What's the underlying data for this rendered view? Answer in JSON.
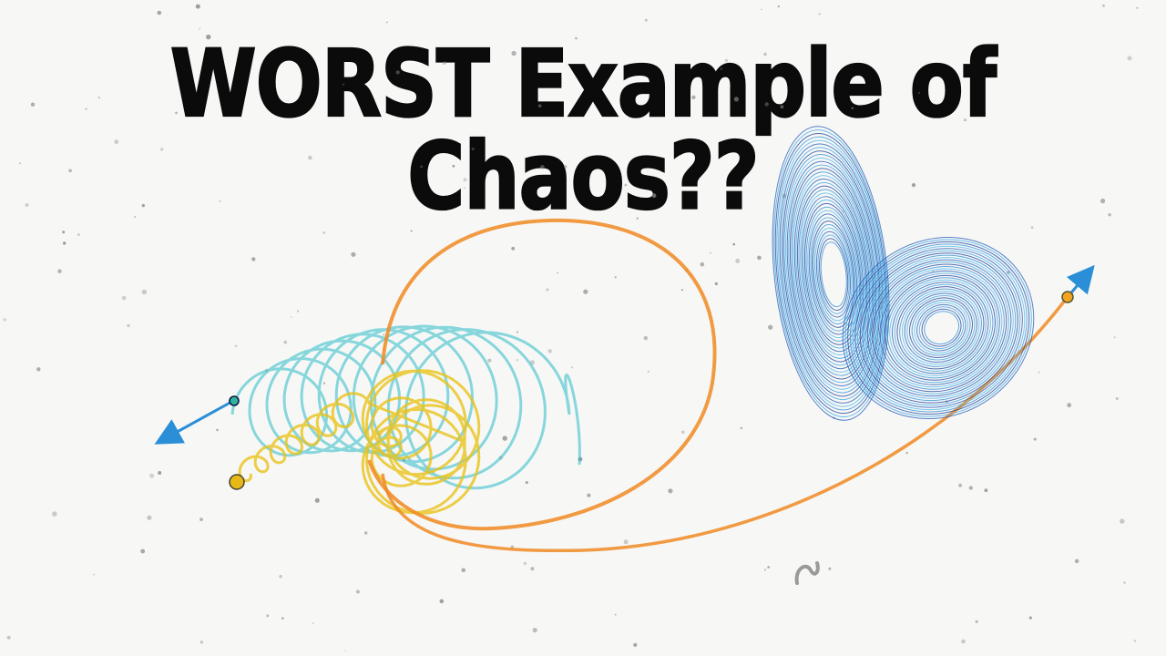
{
  "title": "WORST Example of Chaos??",
  "colors": {
    "background": "#f7f7f6",
    "title": "#0b0b0b",
    "teal": "#29bcc6",
    "yellow": "#e8c21a",
    "orange": "#f08a22",
    "blue": "#2a8fd6",
    "navy": "#1d3f9e"
  },
  "icons": [
    "arrow-left-icon",
    "arrow-up-right-icon",
    "squiggle-icon"
  ]
}
